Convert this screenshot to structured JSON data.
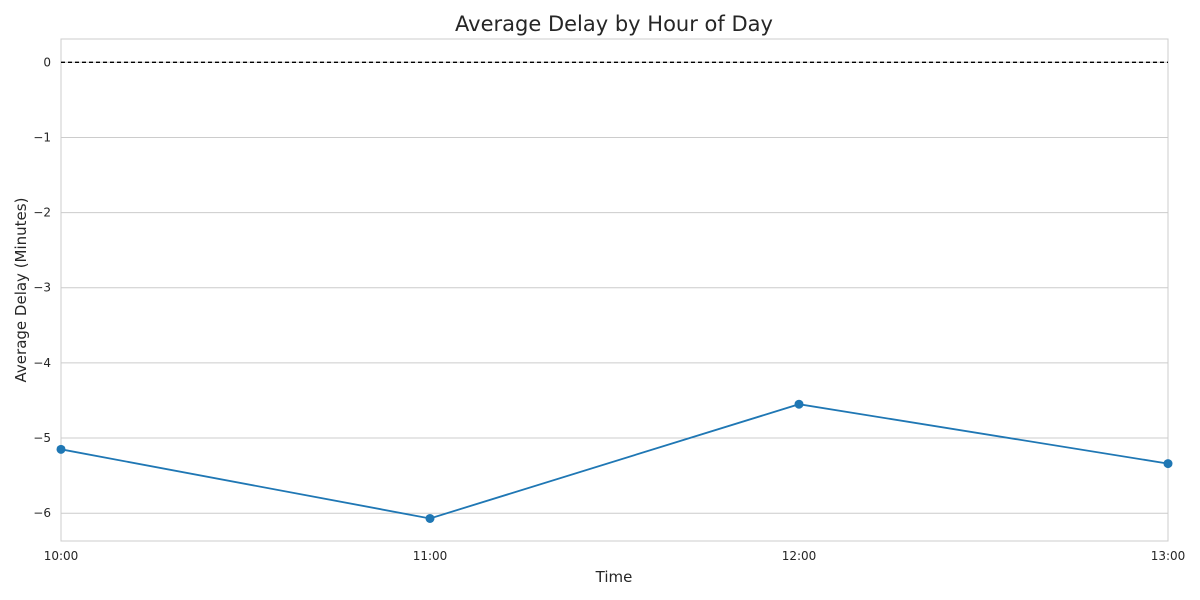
{
  "chart_data": {
    "type": "line",
    "title": "Average Delay by Hour of Day",
    "xlabel": "Time",
    "ylabel": "Average Delay (Minutes)",
    "x": [
      "10:00",
      "11:00",
      "12:00",
      "13:00"
    ],
    "series": [
      {
        "values": [
          -5.15,
          -6.07,
          -4.55,
          -5.34
        ],
        "color": "#1f77b4",
        "marker": "circle"
      }
    ],
    "y_ticks": [
      0,
      -1,
      -2,
      -3,
      -4,
      -5,
      -6
    ],
    "y_tick_labels": [
      "0",
      "−1",
      "−2",
      "−3",
      "−4",
      "−5",
      "−6"
    ],
    "ylim": [
      -6.37,
      0.31
    ],
    "reference_line": {
      "y": 0,
      "style": "dashed",
      "color": "#000000"
    },
    "grid": "horizontal",
    "legend": "none"
  }
}
